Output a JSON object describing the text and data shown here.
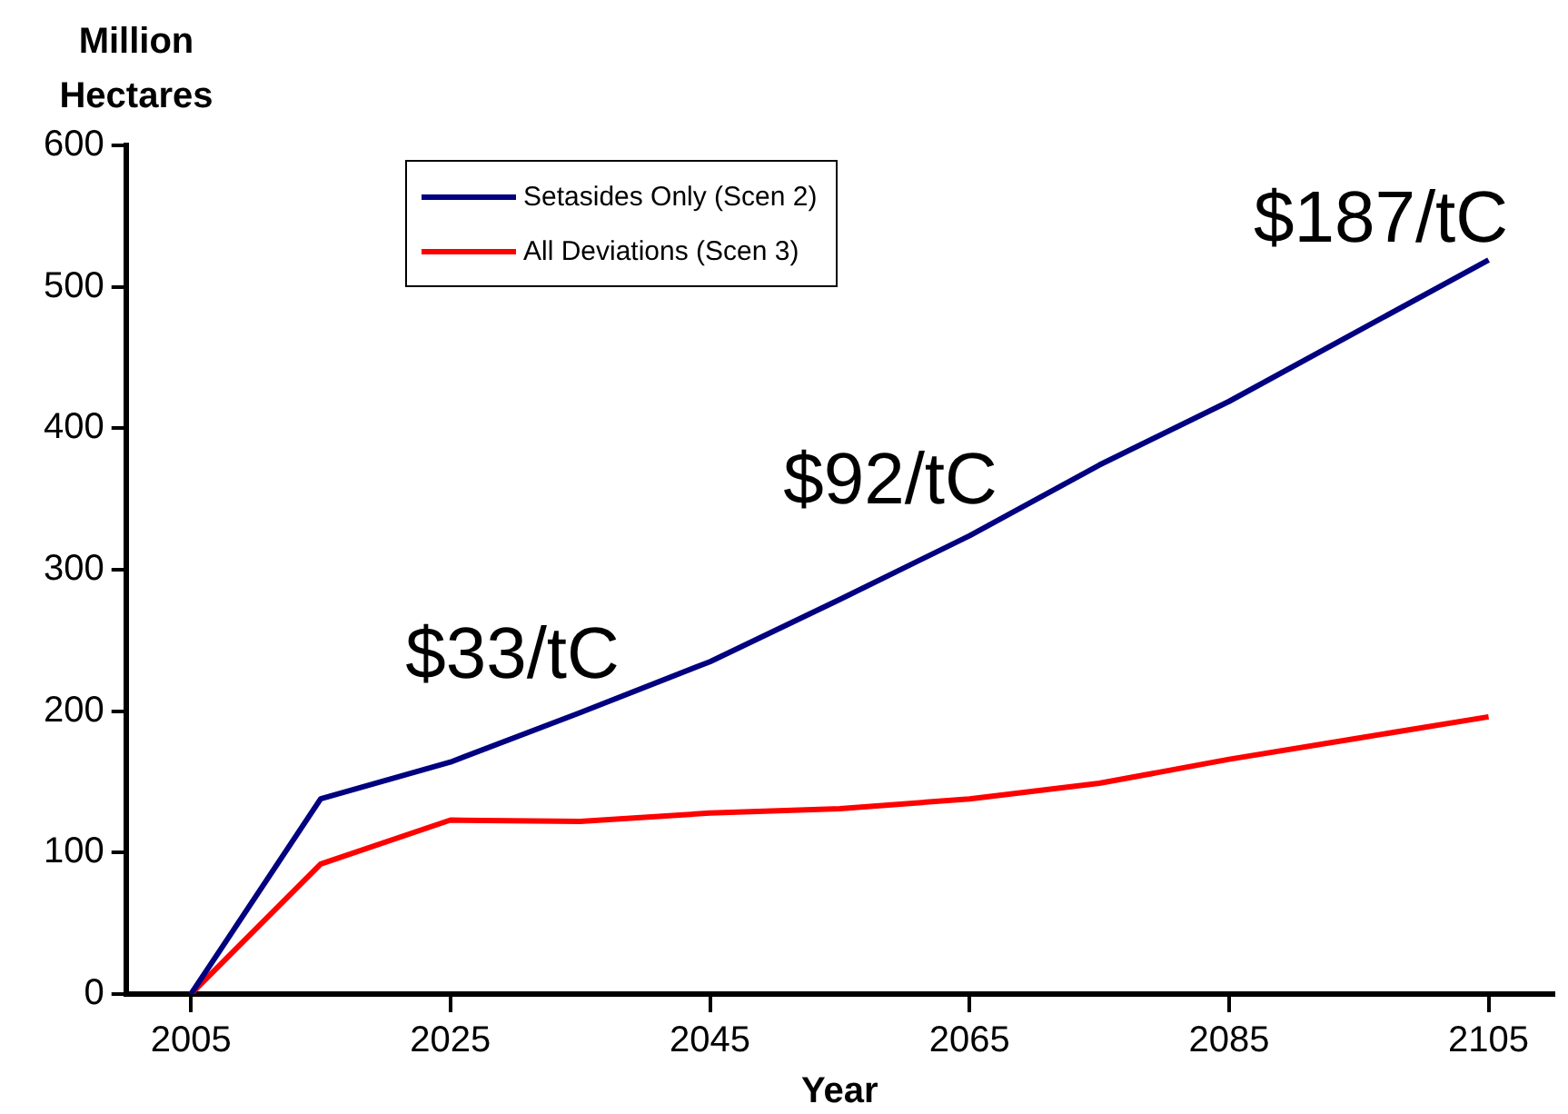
{
  "chart_data": {
    "type": "line",
    "xlabel": "Year",
    "ylabel": "Million Hectares",
    "x": [
      2005,
      2015,
      2025,
      2035,
      2045,
      2055,
      2065,
      2075,
      2085,
      2095,
      2105
    ],
    "series": [
      {
        "name": "Setasides Only (Scen 2)",
        "color": "#000080",
        "values": [
          0,
          138,
          164,
          199,
          235,
          279,
          324,
          374,
          419,
          469,
          519
        ]
      },
      {
        "name": "All Deviations (Scen 3)",
        "color": "#ff0000",
        "values": [
          0,
          92,
          123,
          122,
          128,
          131,
          138,
          149,
          166,
          181,
          196
        ]
      }
    ],
    "xlim": [
      2000,
      2110
    ],
    "xticks": [
      2005,
      2025,
      2045,
      2065,
      2085,
      2105
    ],
    "ylim": [
      0,
      600
    ],
    "yticks": [
      0,
      100,
      200,
      300,
      400,
      500,
      600
    ],
    "grid": false,
    "legend": "top left",
    "marker": "none",
    "line_style": "solid",
    "annotations": [
      "$33/tC",
      "$92/tC",
      "$187/tC"
    ]
  }
}
